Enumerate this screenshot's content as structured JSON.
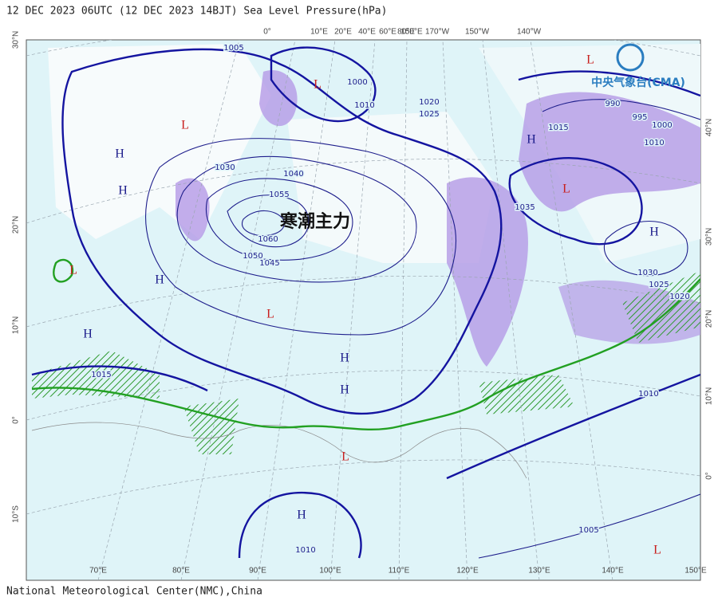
{
  "header": {
    "title": "12 DEC 2023 06UTC  (12 DEC 2023 14BJT) Sea Level Pressure(hPa)"
  },
  "logo": "中央气象台(CMA)",
  "annotation": "寒潮主力",
  "axes": {
    "bottom": [
      "70°E",
      "80°E",
      "90°E",
      "100°E",
      "110°E",
      "120°E",
      "130°E",
      "140°E",
      "150°E"
    ],
    "left": [
      "30°N",
      "20°N",
      "10°N",
      "0°",
      "10°S"
    ],
    "right": [
      "40°N",
      "30°N",
      "20°N",
      "10°N",
      "0°"
    ],
    "top": [
      "0°",
      "10°E",
      "20°E",
      "40°E",
      "60°E",
      "80°E",
      "150°E",
      "170°W",
      "150°W",
      "140°W"
    ]
  },
  "systems": [
    "L",
    "L",
    "H",
    "H",
    "L",
    "H",
    "L",
    "H",
    "H",
    "L",
    "H",
    "L",
    "H",
    "H",
    "L",
    "H",
    "L"
  ],
  "isobar_labels": [
    "1005",
    "1000",
    "1010",
    "1020",
    "1025",
    "990",
    "995",
    "1000",
    "1010",
    "1015",
    "1030",
    "1040",
    "1055",
    "1060",
    "1050",
    "1045",
    "1015",
    "1010",
    "1020",
    "1025",
    "1030",
    "1005",
    "1010",
    "1035"
  ],
  "footer": "National Meteorological Center(NMC),China"
}
